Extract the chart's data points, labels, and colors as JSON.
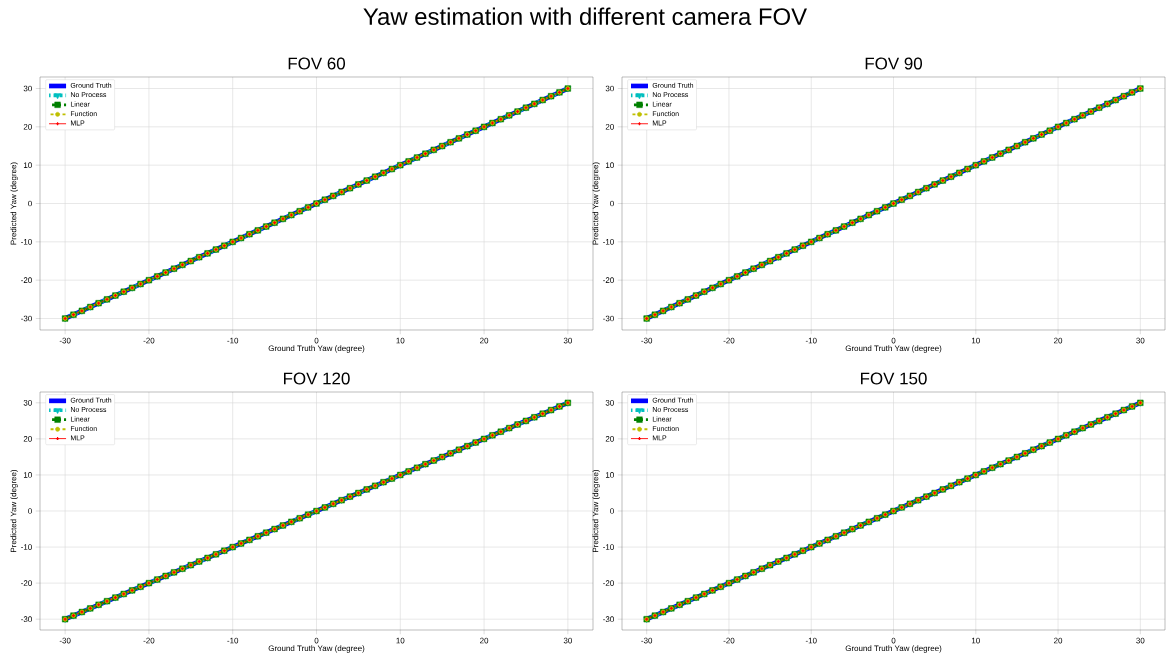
{
  "chart_data": [
    {
      "type": "line",
      "title": "FOV 60",
      "annotations": [
        "Yaw estimation with different camera FOV"
      ],
      "xlabel": "Ground Truth Yaw (degree)",
      "ylabel": "Predicted Yaw (degree)",
      "xlim": [
        -33,
        33
      ],
      "ylim": [
        -33,
        33
      ],
      "xticks": [
        -30,
        -20,
        -10,
        0,
        10,
        20,
        30
      ],
      "yticks": [
        -30,
        -20,
        -10,
        0,
        10,
        20,
        30
      ],
      "grid": true,
      "legend": "top left",
      "x": [
        -30,
        -29,
        -28,
        -27,
        -26,
        -25,
        -24,
        -23,
        -22,
        -21,
        -20,
        -19,
        -18,
        -17,
        -16,
        -15,
        -14,
        -13,
        -12,
        -11,
        -10,
        -9,
        -8,
        -7,
        -6,
        -5,
        -4,
        -3,
        -2,
        -1,
        0,
        1,
        2,
        3,
        4,
        5,
        6,
        7,
        8,
        9,
        10,
        11,
        12,
        13,
        14,
        15,
        16,
        17,
        18,
        19,
        20,
        21,
        22,
        23,
        24,
        25,
        26,
        27,
        28,
        29,
        30
      ],
      "series": [
        {
          "name": "Ground Truth",
          "color": "#0000ff",
          "line_style": "solid",
          "marker": "none",
          "values": [
            -30,
            -29,
            -28,
            -27,
            -26,
            -25,
            -24,
            -23,
            -22,
            -21,
            -20,
            -19,
            -18,
            -17,
            -16,
            -15,
            -14,
            -13,
            -12,
            -11,
            -10,
            -9,
            -8,
            -7,
            -6,
            -5,
            -4,
            -3,
            -2,
            -1,
            0,
            1,
            2,
            3,
            4,
            5,
            6,
            7,
            8,
            9,
            10,
            11,
            12,
            13,
            14,
            15,
            16,
            17,
            18,
            19,
            20,
            21,
            22,
            23,
            24,
            25,
            26,
            27,
            28,
            29,
            30
          ]
        },
        {
          "name": "No Process",
          "color": "#00bfbf",
          "line_style": "dashed",
          "marker": "triangle",
          "values": [
            -30,
            -29,
            -28,
            -27,
            -26,
            -25,
            -24,
            -23,
            -22,
            -21,
            -20,
            -19,
            -18,
            -17,
            -16,
            -15,
            -14,
            -13,
            -12,
            -11,
            -10,
            -9,
            -8,
            -7,
            -6,
            -5,
            -4,
            -3,
            -2,
            -1,
            0,
            1,
            2,
            3,
            4,
            5,
            6,
            7,
            8,
            9,
            10,
            11,
            12,
            13,
            14,
            15,
            16,
            17,
            18,
            19,
            20,
            21,
            22,
            23,
            24,
            25,
            26,
            27,
            28,
            29,
            30
          ]
        },
        {
          "name": "Linear",
          "color": "#008000",
          "line_style": "dashed",
          "marker": "square",
          "values": [
            -30,
            -29,
            -28,
            -27,
            -26,
            -25,
            -24,
            -23,
            -22,
            -21,
            -20,
            -19,
            -18,
            -17,
            -16,
            -15,
            -14,
            -13,
            -12,
            -11,
            -10,
            -9,
            -8,
            -7,
            -6,
            -5,
            -4,
            -3,
            -2,
            -1,
            0,
            1,
            2,
            3,
            4,
            5,
            6,
            7,
            8,
            9,
            10,
            11,
            12,
            13,
            14,
            15,
            16,
            17,
            18,
            19,
            20,
            21,
            22,
            23,
            24,
            25,
            26,
            27,
            28,
            29,
            30
          ]
        },
        {
          "name": "Function",
          "color": "#bfbf00",
          "line_style": "dashed",
          "marker": "circle",
          "values": [
            -30,
            -29,
            -28,
            -27,
            -26,
            -25,
            -24,
            -23,
            -22,
            -21,
            -20,
            -19,
            -18,
            -17,
            -16,
            -15,
            -14,
            -13,
            -12,
            -11,
            -10,
            -9,
            -8,
            -7,
            -6,
            -5,
            -4,
            -3,
            -2,
            -1,
            0,
            1,
            2,
            3,
            4,
            5,
            6,
            7,
            8,
            9,
            10,
            11,
            12,
            13,
            14,
            15,
            16,
            17,
            18,
            19,
            20,
            21,
            22,
            23,
            24,
            25,
            26,
            27,
            28,
            29,
            30
          ]
        },
        {
          "name": "MLP",
          "color": "#ff0000",
          "line_style": "solid",
          "marker": "cross",
          "values": [
            -30,
            -29,
            -28,
            -27,
            -26,
            -25,
            -24,
            -23,
            -22,
            -21,
            -20,
            -19,
            -18,
            -17,
            -16,
            -15,
            -14,
            -13,
            -12,
            -11,
            -10,
            -9,
            -8,
            -7,
            -6,
            -5,
            -4,
            -3,
            -2,
            -1,
            0,
            1,
            2,
            3,
            4,
            5,
            6,
            7,
            8,
            9,
            10,
            11,
            12,
            13,
            14,
            15,
            16,
            17,
            18,
            19,
            20,
            21,
            22,
            23,
            24,
            25,
            26,
            27,
            28,
            29,
            30
          ]
        }
      ]
    },
    {
      "type": "line",
      "title": "FOV 90",
      "xlabel": "Ground Truth Yaw (degree)",
      "ylabel": "Predicted Yaw (degree)",
      "xlim": [
        -33,
        33
      ],
      "ylim": [
        -33,
        33
      ],
      "xticks": [
        -30,
        -20,
        -10,
        0,
        10,
        20,
        30
      ],
      "yticks": [
        -30,
        -20,
        -10,
        0,
        10,
        20,
        30
      ],
      "grid": true,
      "legend": "top left",
      "x": [
        -30,
        -29,
        -28,
        -27,
        -26,
        -25,
        -24,
        -23,
        -22,
        -21,
        -20,
        -19,
        -18,
        -17,
        -16,
        -15,
        -14,
        -13,
        -12,
        -11,
        -10,
        -9,
        -8,
        -7,
        -6,
        -5,
        -4,
        -3,
        -2,
        -1,
        0,
        1,
        2,
        3,
        4,
        5,
        6,
        7,
        8,
        9,
        10,
        11,
        12,
        13,
        14,
        15,
        16,
        17,
        18,
        19,
        20,
        21,
        22,
        23,
        24,
        25,
        26,
        27,
        28,
        29,
        30
      ],
      "series": [
        {
          "name": "Ground Truth",
          "color": "#0000ff",
          "line_style": "solid",
          "marker": "none",
          "values": [
            -30,
            -29,
            -28,
            -27,
            -26,
            -25,
            -24,
            -23,
            -22,
            -21,
            -20,
            -19,
            -18,
            -17,
            -16,
            -15,
            -14,
            -13,
            -12,
            -11,
            -10,
            -9,
            -8,
            -7,
            -6,
            -5,
            -4,
            -3,
            -2,
            -1,
            0,
            1,
            2,
            3,
            4,
            5,
            6,
            7,
            8,
            9,
            10,
            11,
            12,
            13,
            14,
            15,
            16,
            17,
            18,
            19,
            20,
            21,
            22,
            23,
            24,
            25,
            26,
            27,
            28,
            29,
            30
          ]
        },
        {
          "name": "No Process",
          "color": "#00bfbf",
          "line_style": "dashed",
          "marker": "triangle",
          "values": [
            -30,
            -29,
            -28,
            -27,
            -26,
            -25,
            -24,
            -23,
            -22,
            -21,
            -20,
            -19,
            -18,
            -17,
            -16,
            -15,
            -14,
            -13,
            -12,
            -11,
            -10,
            -9,
            -8,
            -7,
            -6,
            -5,
            -4,
            -3,
            -2,
            -1,
            0,
            1,
            2,
            3,
            4,
            5,
            6,
            7,
            8,
            9,
            10,
            11,
            12,
            13,
            14,
            15,
            16,
            17,
            18,
            19,
            20,
            21,
            22,
            23,
            24,
            25,
            26,
            27,
            28,
            29,
            30
          ]
        },
        {
          "name": "Linear",
          "color": "#008000",
          "line_style": "dashed",
          "marker": "square",
          "values": [
            -30,
            -29,
            -28,
            -27,
            -26,
            -25,
            -24,
            -23,
            -22,
            -21,
            -20,
            -19,
            -18,
            -17,
            -16,
            -15,
            -14,
            -13,
            -12,
            -11,
            -10,
            -9,
            -8,
            -7,
            -6,
            -5,
            -4,
            -3,
            -2,
            -1,
            0,
            1,
            2,
            3,
            4,
            5,
            6,
            7,
            8,
            9,
            10,
            11,
            12,
            13,
            14,
            15,
            16,
            17,
            18,
            19,
            20,
            21,
            22,
            23,
            24,
            25,
            26,
            27,
            28,
            29,
            30
          ]
        },
        {
          "name": "Function",
          "color": "#bfbf00",
          "line_style": "dashed",
          "marker": "circle",
          "values": [
            -30,
            -29,
            -28,
            -27,
            -26,
            -25,
            -24,
            -23,
            -22,
            -21,
            -20,
            -19,
            -18,
            -17,
            -16,
            -15,
            -14,
            -13,
            -12,
            -11,
            -10,
            -9,
            -8,
            -7,
            -6,
            -5,
            -4,
            -3,
            -2,
            -1,
            0,
            1,
            2,
            3,
            4,
            5,
            6,
            7,
            8,
            9,
            10,
            11,
            12,
            13,
            14,
            15,
            16,
            17,
            18,
            19,
            20,
            21,
            22,
            23,
            24,
            25,
            26,
            27,
            28,
            29,
            30
          ]
        },
        {
          "name": "MLP",
          "color": "#ff0000",
          "line_style": "solid",
          "marker": "cross",
          "values": [
            -30,
            -29,
            -28,
            -27,
            -26,
            -25,
            -24,
            -23,
            -22,
            -21,
            -20,
            -19,
            -18,
            -17,
            -16,
            -15,
            -14,
            -13,
            -12,
            -11,
            -10,
            -9,
            -8,
            -7,
            -6,
            -5,
            -4,
            -3,
            -2,
            -1,
            0,
            1,
            2,
            3,
            4,
            5,
            6,
            7,
            8,
            9,
            10,
            11,
            12,
            13,
            14,
            15,
            16,
            17,
            18,
            19,
            20,
            21,
            22,
            23,
            24,
            25,
            26,
            27,
            28,
            29,
            30
          ]
        }
      ]
    },
    {
      "type": "line",
      "title": "FOV 120",
      "xlabel": "Ground Truth Yaw (degree)",
      "ylabel": "Predicted Yaw (degree)",
      "xlim": [
        -33,
        33
      ],
      "ylim": [
        -33,
        33
      ],
      "xticks": [
        -30,
        -20,
        -10,
        0,
        10,
        20,
        30
      ],
      "yticks": [
        -30,
        -20,
        -10,
        0,
        10,
        20,
        30
      ],
      "grid": true,
      "legend": "top left",
      "x": [
        -30,
        -29,
        -28,
        -27,
        -26,
        -25,
        -24,
        -23,
        -22,
        -21,
        -20,
        -19,
        -18,
        -17,
        -16,
        -15,
        -14,
        -13,
        -12,
        -11,
        -10,
        -9,
        -8,
        -7,
        -6,
        -5,
        -4,
        -3,
        -2,
        -1,
        0,
        1,
        2,
        3,
        4,
        5,
        6,
        7,
        8,
        9,
        10,
        11,
        12,
        13,
        14,
        15,
        16,
        17,
        18,
        19,
        20,
        21,
        22,
        23,
        24,
        25,
        26,
        27,
        28,
        29,
        30
      ],
      "series": [
        {
          "name": "Ground Truth",
          "color": "#0000ff",
          "line_style": "solid",
          "marker": "none",
          "values": [
            -30,
            -29,
            -28,
            -27,
            -26,
            -25,
            -24,
            -23,
            -22,
            -21,
            -20,
            -19,
            -18,
            -17,
            -16,
            -15,
            -14,
            -13,
            -12,
            -11,
            -10,
            -9,
            -8,
            -7,
            -6,
            -5,
            -4,
            -3,
            -2,
            -1,
            0,
            1,
            2,
            3,
            4,
            5,
            6,
            7,
            8,
            9,
            10,
            11,
            12,
            13,
            14,
            15,
            16,
            17,
            18,
            19,
            20,
            21,
            22,
            23,
            24,
            25,
            26,
            27,
            28,
            29,
            30
          ]
        },
        {
          "name": "No Process",
          "color": "#00bfbf",
          "line_style": "dashed",
          "marker": "triangle",
          "values": [
            -30,
            -29,
            -28,
            -27,
            -26,
            -25,
            -24,
            -23,
            -22,
            -21,
            -20,
            -19,
            -18,
            -17,
            -16,
            -15,
            -14,
            -13,
            -12,
            -11,
            -10,
            -9,
            -8,
            -7,
            -6,
            -5,
            -4,
            -3,
            -2,
            -1,
            0,
            1,
            2,
            3,
            4,
            5,
            6,
            7,
            8,
            9,
            10,
            11,
            12,
            13,
            14,
            15,
            16,
            17,
            18,
            19,
            20,
            21,
            22,
            23,
            24,
            25,
            26,
            27,
            28,
            29,
            30
          ]
        },
        {
          "name": "Linear",
          "color": "#008000",
          "line_style": "dashed",
          "marker": "square",
          "values": [
            -30,
            -29,
            -28,
            -27,
            -26,
            -25,
            -24,
            -23,
            -22,
            -21,
            -20,
            -19,
            -18,
            -17,
            -16,
            -15,
            -14,
            -13,
            -12,
            -11,
            -10,
            -9,
            -8,
            -7,
            -6,
            -5,
            -4,
            -3,
            -2,
            -1,
            0,
            1,
            2,
            3,
            4,
            5,
            6,
            7,
            8,
            9,
            10,
            11,
            12,
            13,
            14,
            15,
            16,
            17,
            18,
            19,
            20,
            21,
            22,
            23,
            24,
            25,
            26,
            27,
            28,
            29,
            30
          ]
        },
        {
          "name": "Function",
          "color": "#bfbf00",
          "line_style": "dashed",
          "marker": "circle",
          "values": [
            -30,
            -29,
            -28,
            -27,
            -26,
            -25,
            -24,
            -23,
            -22,
            -21,
            -20,
            -19,
            -18,
            -17,
            -16,
            -15,
            -14,
            -13,
            -12,
            -11,
            -10,
            -9,
            -8,
            -7,
            -6,
            -5,
            -4,
            -3,
            -2,
            -1,
            0,
            1,
            2,
            3,
            4,
            5,
            6,
            7,
            8,
            9,
            10,
            11,
            12,
            13,
            14,
            15,
            16,
            17,
            18,
            19,
            20,
            21,
            22,
            23,
            24,
            25,
            26,
            27,
            28,
            29,
            30
          ]
        },
        {
          "name": "MLP",
          "color": "#ff0000",
          "line_style": "solid",
          "marker": "cross",
          "values": [
            -30,
            -29,
            -28,
            -27,
            -26,
            -25,
            -24,
            -23,
            -22,
            -21,
            -20,
            -19,
            -18,
            -17,
            -16,
            -15,
            -14,
            -13,
            -12,
            -11,
            -10,
            -9,
            -8,
            -7,
            -6,
            -5,
            -4,
            -3,
            -2,
            -1,
            0,
            1,
            2,
            3,
            4,
            5,
            6,
            7,
            8,
            9,
            10,
            11,
            12,
            13,
            14,
            15,
            16,
            17,
            18,
            19,
            20,
            21,
            22,
            23,
            24,
            25,
            26,
            27,
            28,
            29,
            30
          ]
        }
      ]
    },
    {
      "type": "line",
      "title": "FOV 150",
      "xlabel": "Ground Truth Yaw (degree)",
      "ylabel": "Predicted Yaw (degree)",
      "xlim": [
        -33,
        33
      ],
      "ylim": [
        -33,
        33
      ],
      "xticks": [
        -30,
        -20,
        -10,
        0,
        10,
        20,
        30
      ],
      "yticks": [
        -30,
        -20,
        -10,
        0,
        10,
        20,
        30
      ],
      "grid": true,
      "legend": "top left",
      "x": [
        -30,
        -29,
        -28,
        -27,
        -26,
        -25,
        -24,
        -23,
        -22,
        -21,
        -20,
        -19,
        -18,
        -17,
        -16,
        -15,
        -14,
        -13,
        -12,
        -11,
        -10,
        -9,
        -8,
        -7,
        -6,
        -5,
        -4,
        -3,
        -2,
        -1,
        0,
        1,
        2,
        3,
        4,
        5,
        6,
        7,
        8,
        9,
        10,
        11,
        12,
        13,
        14,
        15,
        16,
        17,
        18,
        19,
        20,
        21,
        22,
        23,
        24,
        25,
        26,
        27,
        28,
        29,
        30
      ],
      "series": [
        {
          "name": "Ground Truth",
          "color": "#0000ff",
          "line_style": "solid",
          "marker": "none",
          "values": [
            -30,
            -29,
            -28,
            -27,
            -26,
            -25,
            -24,
            -23,
            -22,
            -21,
            -20,
            -19,
            -18,
            -17,
            -16,
            -15,
            -14,
            -13,
            -12,
            -11,
            -10,
            -9,
            -8,
            -7,
            -6,
            -5,
            -4,
            -3,
            -2,
            -1,
            0,
            1,
            2,
            3,
            4,
            5,
            6,
            7,
            8,
            9,
            10,
            11,
            12,
            13,
            14,
            15,
            16,
            17,
            18,
            19,
            20,
            21,
            22,
            23,
            24,
            25,
            26,
            27,
            28,
            29,
            30
          ]
        },
        {
          "name": "No Process",
          "color": "#00bfbf",
          "line_style": "dashed",
          "marker": "triangle",
          "values": [
            -30,
            -29,
            -28,
            -27,
            -26,
            -25,
            -24,
            -23,
            -22,
            -21,
            -20,
            -19,
            -18,
            -17,
            -16,
            -15,
            -14,
            -13,
            -12,
            -11,
            -10,
            -9,
            -8,
            -7,
            -6,
            -5,
            -4,
            -3,
            -2,
            -1,
            0,
            1,
            2,
            3,
            4,
            5,
            6,
            7,
            8,
            9,
            10,
            11,
            12,
            13,
            14,
            15,
            16,
            17,
            18,
            19,
            20,
            21,
            22,
            23,
            24,
            25,
            26,
            27,
            28,
            29,
            30
          ]
        },
        {
          "name": "Linear",
          "color": "#008000",
          "line_style": "dashed",
          "marker": "square",
          "values": [
            -30,
            -29,
            -28,
            -27,
            -26,
            -25,
            -24,
            -23,
            -22,
            -21,
            -20,
            -19,
            -18,
            -17,
            -16,
            -15,
            -14,
            -13,
            -12,
            -11,
            -10,
            -9,
            -8,
            -7,
            -6,
            -5,
            -4,
            -3,
            -2,
            -1,
            0,
            1,
            2,
            3,
            4,
            5,
            6,
            7,
            8,
            9,
            10,
            11,
            12,
            13,
            14,
            15,
            16,
            17,
            18,
            19,
            20,
            21,
            22,
            23,
            24,
            25,
            26,
            27,
            28,
            29,
            30
          ]
        },
        {
          "name": "Function",
          "color": "#bfbf00",
          "line_style": "dashed",
          "marker": "circle",
          "values": [
            -30,
            -29,
            -28,
            -27,
            -26,
            -25,
            -24,
            -23,
            -22,
            -21,
            -20,
            -19,
            -18,
            -17,
            -16,
            -15,
            -14,
            -13,
            -12,
            -11,
            -10,
            -9,
            -8,
            -7,
            -6,
            -5,
            -4,
            -3,
            -2,
            -1,
            0,
            1,
            2,
            3,
            4,
            5,
            6,
            7,
            8,
            9,
            10,
            11,
            12,
            13,
            14,
            15,
            16,
            17,
            18,
            19,
            20,
            21,
            22,
            23,
            24,
            25,
            26,
            27,
            28,
            29,
            30
          ]
        },
        {
          "name": "MLP",
          "color": "#ff0000",
          "line_style": "solid",
          "marker": "cross",
          "values": [
            -30,
            -29,
            -28,
            -27,
            -26,
            -25,
            -24,
            -23,
            -22,
            -21,
            -20,
            -19,
            -18,
            -17,
            -16,
            -15,
            -14,
            -13,
            -12,
            -11,
            -10,
            -9,
            -8,
            -7,
            -6,
            -5,
            -4,
            -3,
            -2,
            -1,
            0,
            1,
            2,
            3,
            4,
            5,
            6,
            7,
            8,
            9,
            10,
            11,
            12,
            13,
            14,
            15,
            16,
            17,
            18,
            19,
            20,
            21,
            22,
            23,
            24,
            25,
            26,
            27,
            28,
            29,
            30
          ]
        }
      ]
    }
  ]
}
